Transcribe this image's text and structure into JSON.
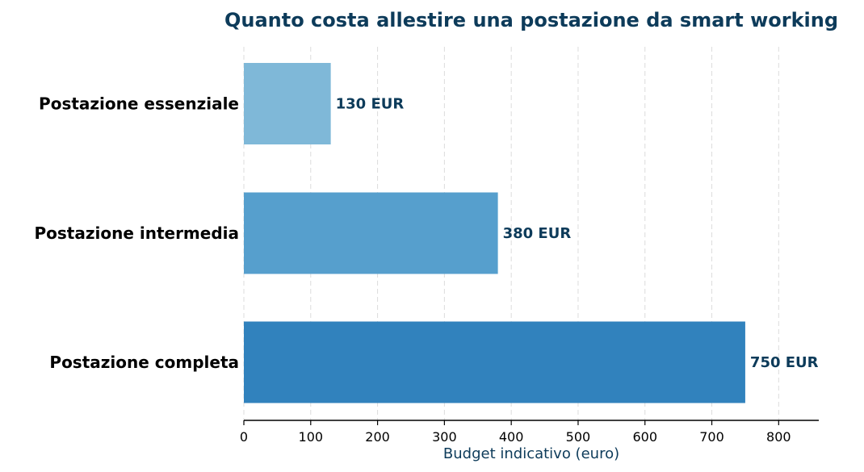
{
  "chart_data": {
    "type": "bar",
    "orientation": "horizontal",
    "title": "Quanto costa allestire una postazione da smart working",
    "xlabel": "Budget indicativo (euro)",
    "ylabel": "",
    "categories": [
      "Postazione essenziale",
      "Postazione intermedia",
      "Postazione completa"
    ],
    "values": [
      130,
      380,
      750
    ],
    "value_labels": [
      "130 EUR",
      "380 EUR",
      "750 EUR"
    ],
    "bar_colors": [
      "#7fb8d8",
      "#569fcd",
      "#3182bd"
    ],
    "xlim": [
      0,
      860
    ],
    "xticks": [
      0,
      100,
      200,
      300,
      400,
      500,
      600,
      700,
      800
    ],
    "grid": "vertical dashed",
    "legend": "none"
  }
}
